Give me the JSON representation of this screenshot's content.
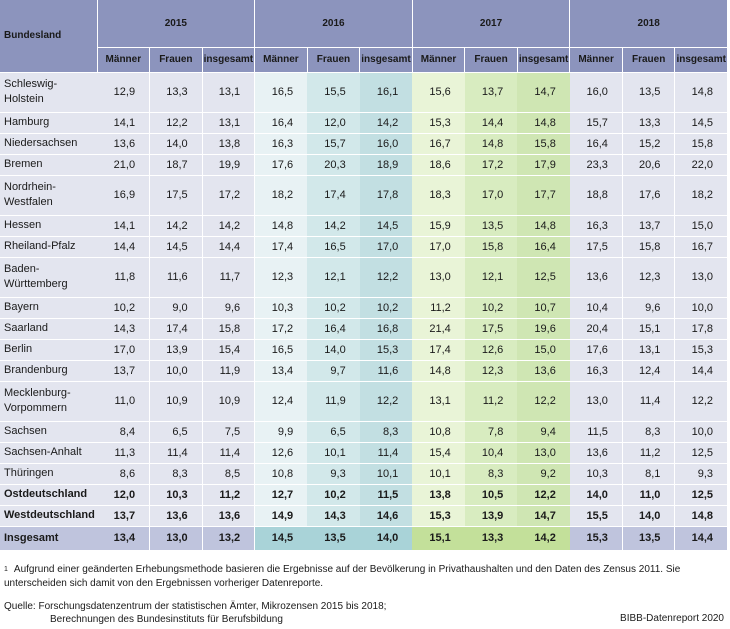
{
  "table": {
    "header_land": "Bundesland",
    "years": [
      "2015",
      "2016",
      "2017",
      "2018"
    ],
    "sub_headers": [
      "Männer",
      "Frauen",
      "insgesamt"
    ],
    "rows": [
      {
        "land": "Schleswig-\nHolstein",
        "values": [
          "12,9",
          "13,3",
          "13,1",
          "16,5",
          "15,5",
          "16,1",
          "15,6",
          "13,7",
          "14,7",
          "16,0",
          "13,5",
          "14,8"
        ]
      },
      {
        "land": "Hamburg",
        "values": [
          "14,1",
          "12,2",
          "13,1",
          "16,4",
          "12,0",
          "14,2",
          "15,3",
          "14,4",
          "14,8",
          "15,7",
          "13,3",
          "14,5"
        ]
      },
      {
        "land": "Niedersachsen",
        "values": [
          "13,6",
          "14,0",
          "13,8",
          "16,3",
          "15,7",
          "16,0",
          "16,7",
          "14,8",
          "15,8",
          "16,4",
          "15,2",
          "15,8"
        ]
      },
      {
        "land": "Bremen",
        "values": [
          "21,0",
          "18,7",
          "19,9",
          "17,6",
          "20,3",
          "18,9",
          "18,6",
          "17,2",
          "17,9",
          "23,3",
          "20,6",
          "22,0"
        ]
      },
      {
        "land": "Nordrhein-\nWestfalen",
        "values": [
          "16,9",
          "17,5",
          "17,2",
          "18,2",
          "17,4",
          "17,8",
          "18,3",
          "17,0",
          "17,7",
          "18,8",
          "17,6",
          "18,2"
        ]
      },
      {
        "land": "Hessen",
        "values": [
          "14,1",
          "14,2",
          "14,2",
          "14,8",
          "14,2",
          "14,5",
          "15,9",
          "13,5",
          "14,8",
          "16,3",
          "13,7",
          "15,0"
        ]
      },
      {
        "land": "Rheiland-Pfalz",
        "values": [
          "14,4",
          "14,5",
          "14,4",
          "17,4",
          "16,5",
          "17,0",
          "17,0",
          "15,8",
          "16,4",
          "17,5",
          "15,8",
          "16,7"
        ]
      },
      {
        "land": "Baden-\nWürttemberg",
        "values": [
          "11,8",
          "11,6",
          "11,7",
          "12,3",
          "12,1",
          "12,2",
          "13,0",
          "12,1",
          "12,5",
          "13,6",
          "12,3",
          "13,0"
        ]
      },
      {
        "land": "Bayern",
        "values": [
          "10,2",
          "9,0",
          "9,6",
          "10,3",
          "10,2",
          "10,2",
          "11,2",
          "10,2",
          "10,7",
          "10,4",
          "9,6",
          "10,0"
        ]
      },
      {
        "land": "Saarland",
        "values": [
          "14,3",
          "17,4",
          "15,8",
          "17,2",
          "16,4",
          "16,8",
          "21,4",
          "17,5",
          "19,6",
          "20,4",
          "15,1",
          "17,8"
        ]
      },
      {
        "land": "Berlin",
        "values": [
          "17,0",
          "13,9",
          "15,4",
          "16,5",
          "14,0",
          "15,3",
          "17,4",
          "12,6",
          "15,0",
          "17,6",
          "13,1",
          "15,3"
        ]
      },
      {
        "land": "Brandenburg",
        "values": [
          "13,7",
          "10,0",
          "11,9",
          "13,4",
          "9,7",
          "11,6",
          "14,8",
          "12,3",
          "13,6",
          "16,3",
          "12,4",
          "14,4"
        ]
      },
      {
        "land": "Mecklenburg-\nVorpommern",
        "values": [
          "11,0",
          "10,9",
          "10,9",
          "12,4",
          "11,9",
          "12,2",
          "13,1",
          "11,2",
          "12,2",
          "13,0",
          "11,4",
          "12,2"
        ]
      },
      {
        "land": "Sachsen",
        "values": [
          "8,4",
          "6,5",
          "7,5",
          "9,9",
          "6,5",
          "8,3",
          "10,8",
          "7,8",
          "9,4",
          "11,5",
          "8,3",
          "10,0"
        ]
      },
      {
        "land": "Sachsen-Anhalt",
        "values": [
          "11,3",
          "11,4",
          "11,4",
          "12,6",
          "10,1",
          "11,4",
          "15,4",
          "10,4",
          "13,0",
          "13,6",
          "11,2",
          "12,5"
        ]
      },
      {
        "land": "Thüringen",
        "values": [
          "8,6",
          "8,3",
          "8,5",
          "10,8",
          "9,3",
          "10,1",
          "10,1",
          "8,3",
          "9,2",
          "10,3",
          "8,1",
          "9,3"
        ]
      },
      {
        "land": "Ostdeutschland",
        "values": [
          "12,0",
          "10,3",
          "11,2",
          "12,7",
          "10,2",
          "11,5",
          "13,8",
          "10,5",
          "12,2",
          "14,0",
          "11,0",
          "12,5"
        ],
        "bold": true
      },
      {
        "land": "Westdeutschland",
        "values": [
          "13,7",
          "13,6",
          "13,6",
          "14,9",
          "14,3",
          "14,6",
          "15,3",
          "13,9",
          "14,7",
          "15,5",
          "14,0",
          "14,8"
        ],
        "bold": true
      }
    ],
    "total": {
      "land": "Insgesamt",
      "values": [
        "13,4",
        "13,0",
        "13,2",
        "14,5",
        "13,5",
        "14,0",
        "15,1",
        "13,3",
        "14,2",
        "15,3",
        "13,5",
        "14,4"
      ]
    }
  },
  "footnote": {
    "marker": "1",
    "text": "Aufgrund einer geänderten Erhebungsmethode basieren die Ergebnisse auf der Bevölkerung in Privathaushalten und den Daten des Zensus 2011. Sie unterscheiden sich damit von den Ergebnissen vorheriger Datenreporte."
  },
  "source": {
    "line1": "Quelle: Forschungsdatenzentrum der statistischen Ämter, Mikrozensen 2015 bis 2018;",
    "line2": "Berechnungen des Bundesinstituts für Berufsbildung"
  },
  "credit": "BIBB-Datenreport 2020"
}
